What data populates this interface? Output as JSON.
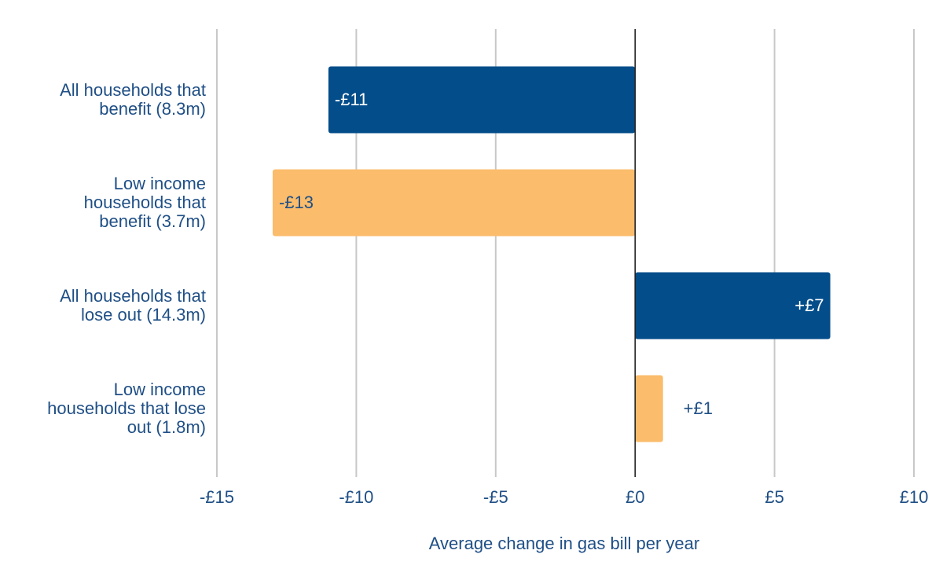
{
  "colors": {
    "navy": "#034d8a",
    "orange": "#fbbc6b",
    "label_text": "#1f4f86",
    "gridline": "#c8c8c8",
    "zero_line": "#222222",
    "bar_label_light": "#ffffff",
    "bar_label_dark": "#1f4f86"
  },
  "chart_data": {
    "type": "bar",
    "orientation": "horizontal",
    "title": "",
    "xlabel": "Average change in gas bill per year",
    "ylabel": "",
    "xlim": [
      -15,
      10
    ],
    "x_ticks": [
      -15,
      -10,
      -5,
      0,
      5,
      10
    ],
    "x_tick_labels": [
      "-£15",
      "-£10",
      "-£5",
      "£0",
      "£5",
      "£10"
    ],
    "grid": true,
    "categories": [
      [
        "All households that",
        "benefit (8.3m)"
      ],
      [
        "Low income",
        "households that",
        "benefit (3.7m)"
      ],
      [
        "All households that",
        "lose out (14.3m)"
      ],
      [
        "Low income",
        "households that lose",
        "out (1.8m)"
      ]
    ],
    "values": [
      -11,
      -13,
      7,
      1
    ],
    "value_labels": [
      "-£11",
      "-£13",
      "+£7",
      "+£1"
    ],
    "bar_colors": [
      "navy",
      "orange",
      "navy",
      "orange"
    ]
  }
}
